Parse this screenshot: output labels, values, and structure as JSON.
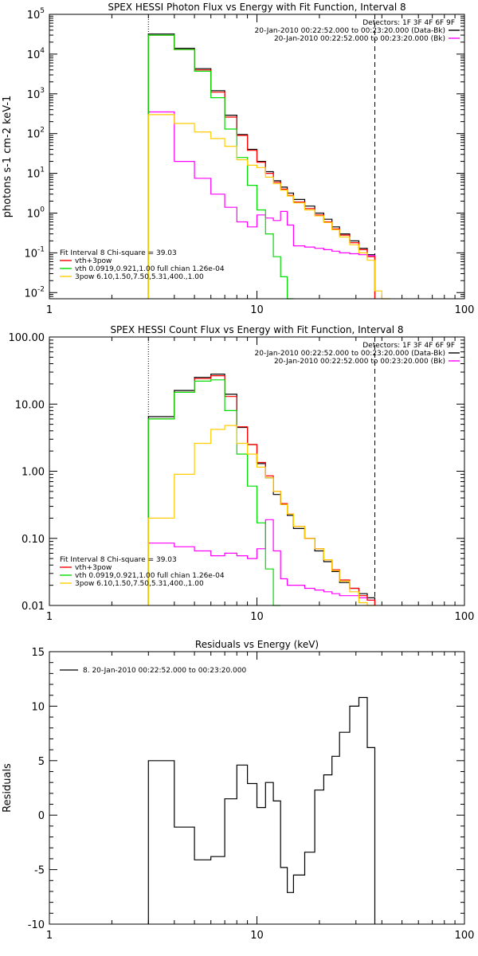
{
  "chart_data": [
    {
      "type": "line",
      "title": "SPEX HESSI Photon Flux vs Energy with Fit Function, Interval 8",
      "xlabel": "",
      "ylabel": "photons s-1 cm-2 keV-1",
      "xscale": "log",
      "yscale": "log",
      "xlim": [
        1,
        100
      ],
      "ylim": [
        0.007,
        100000
      ],
      "x_ticks": [
        "1",
        "10",
        "100"
      ],
      "y_ticks": [
        {
          "value": 100000,
          "base": "10",
          "exp": "5"
        },
        {
          "value": 10000,
          "base": "10",
          "exp": "4"
        },
        {
          "value": 1000,
          "base": "10",
          "exp": "3"
        },
        {
          "value": 100,
          "base": "10",
          "exp": "2"
        },
        {
          "value": 10,
          "base": "10",
          "exp": "1"
        },
        {
          "value": 1,
          "base": "10",
          "exp": "0"
        },
        {
          "value": 0.1,
          "base": "10",
          "exp": "-1"
        },
        {
          "value": 0.01,
          "base": "10",
          "exp": "-2"
        }
      ],
      "vlines": [
        {
          "x": 3.0,
          "style": "dotted"
        },
        {
          "x": 37.0,
          "style": "dashed"
        }
      ],
      "legend_top": {
        "header": "Detectors: 1F 3F 4F 6F 9F",
        "entries": [
          {
            "label": "20-Jan-2010 00:22:52.000 to 00:23:20.000 (Data-Bk)",
            "color": "#000000"
          },
          {
            "label": "20-Jan-2010 00:22:52.000 to 00:23:20.000 (Bk)",
            "color": "#ff00ff"
          }
        ]
      },
      "legend_bottom": {
        "header": "Fit Interval 8   Chi-square = 39.03",
        "entries": [
          {
            "label": "vth+3pow",
            "color": "#ff0000"
          },
          {
            "label": "vth 0.0919,0.921,1.00  full chian 1.26e-04",
            "color": "#00dd00"
          },
          {
            "label": "3pow 6.10,1.50,7.50,5.31,400.,1.00",
            "color": "#ffcc00"
          }
        ]
      },
      "edges": [
        3.0,
        4.0,
        5.0,
        6.0,
        7.0,
        8.0,
        9.0,
        10.0,
        11.0,
        12.0,
        13.0,
        14.0,
        15.0,
        17.0,
        19.0,
        21.0,
        23.0,
        25.0,
        28.0,
        31.0,
        34.0,
        37.0,
        40.0,
        44.0
      ],
      "series": [
        {
          "color": "#000000",
          "values": [
            32000,
            14000,
            4300,
            1200,
            290,
            95,
            40,
            20,
            11,
            6.5,
            4.5,
            3.2,
            2.2,
            1.5,
            1.0,
            0.7,
            0.45,
            0.3,
            0.2,
            0.13,
            0.09,
            null,
            null
          ]
        },
        {
          "color": "#ff00ff",
          "values": [
            350,
            20,
            7.5,
            3.0,
            1.4,
            0.6,
            0.45,
            0.9,
            0.75,
            0.65,
            1.1,
            0.5,
            0.15,
            0.14,
            0.13,
            0.12,
            0.11,
            0.1,
            0.095,
            0.09,
            0.085,
            null,
            null
          ]
        },
        {
          "color": "#ff0000",
          "values": [
            30000,
            13000,
            4000,
            1100,
            260,
            90,
            38,
            19,
            10,
            6.0,
            4.0,
            2.8,
            1.9,
            1.3,
            0.9,
            0.6,
            0.4,
            0.28,
            0.18,
            0.12,
            0.08,
            null,
            null
          ]
        },
        {
          "color": "#00dd00",
          "values": [
            30000,
            13000,
            3700,
            800,
            130,
            25,
            5,
            1.2,
            0.3,
            0.08,
            0.025,
            0.006,
            null,
            null,
            null,
            null,
            null,
            null,
            null,
            null,
            null,
            null,
            null
          ]
        },
        {
          "color": "#ffcc00",
          "values": [
            300,
            180,
            110,
            75,
            48,
            22,
            16,
            14,
            8,
            5.5,
            3.8,
            2.7,
            1.8,
            1.2,
            0.85,
            0.58,
            0.38,
            0.25,
            0.16,
            0.1,
            0.065,
            0.011,
            0.007
          ]
        }
      ]
    },
    {
      "type": "line",
      "title": "SPEX HESSI Count Flux vs Energy with Fit Function, Interval 8",
      "xlabel": "",
      "ylabel": "",
      "xscale": "log",
      "yscale": "log",
      "xlim": [
        1,
        100
      ],
      "ylim": [
        0.01,
        100
      ],
      "x_ticks": [
        "1",
        "10",
        "100"
      ],
      "y_ticks": [
        {
          "value": 100,
          "label": "100.00"
        },
        {
          "value": 10,
          "label": "10.00"
        },
        {
          "value": 1,
          "label": "1.00"
        },
        {
          "value": 0.1,
          "label": "0.10"
        },
        {
          "value": 0.01,
          "label": "0.01"
        }
      ],
      "vlines": [
        {
          "x": 3.0,
          "style": "dotted"
        },
        {
          "x": 37.0,
          "style": "dashed"
        }
      ],
      "legend_top": {
        "header": "Detectors: 1F 3F 4F 6F 9F",
        "entries": [
          {
            "label": "20-Jan-2010 00:22:52.000 to 00:23:20.000 (Data-Bk)",
            "color": "#000000"
          },
          {
            "label": "20-Jan-2010 00:22:52.000 to 00:23:20.000 (Bk)",
            "color": "#ff00ff"
          }
        ]
      },
      "legend_bottom": {
        "header": "Fit Interval 8   Chi-square = 39.03",
        "entries": [
          {
            "label": "vth+3pow",
            "color": "#ff0000"
          },
          {
            "label": "vth 0.0919,0.921,1.00  full chian 1.26e-04",
            "color": "#00dd00"
          },
          {
            "label": "3pow 6.10,1.50,7.50,5.31,400.,1.00",
            "color": "#ffcc00"
          }
        ]
      },
      "edges": [
        3.0,
        4.0,
        5.0,
        6.0,
        7.0,
        8.0,
        9.0,
        10.0,
        11.0,
        12.0,
        13.0,
        14.0,
        15.0,
        17.0,
        19.0,
        21.0,
        23.0,
        25.0,
        28.0,
        31.0,
        34.0,
        37.0,
        40.0
      ],
      "series": [
        {
          "color": "#000000",
          "values": [
            6.5,
            16.0,
            25.0,
            28.0,
            14.0,
            4.5,
            2.5,
            1.3,
            0.8,
            0.45,
            0.32,
            0.22,
            0.14,
            0.1,
            0.065,
            0.045,
            0.032,
            0.022,
            0.018,
            0.015,
            0.013,
            null
          ]
        },
        {
          "color": "#ff00ff",
          "values": [
            0.085,
            0.075,
            0.065,
            0.055,
            0.06,
            0.055,
            0.05,
            0.07,
            0.19,
            0.065,
            0.025,
            0.02,
            0.02,
            0.018,
            0.017,
            0.016,
            0.015,
            0.014,
            0.014,
            0.013,
            0.012,
            null
          ]
        },
        {
          "color": "#ff0000",
          "values": [
            6.0,
            15.0,
            24.0,
            26.5,
            13.0,
            4.6,
            2.5,
            1.35,
            0.85,
            0.5,
            0.33,
            0.23,
            0.15,
            0.1,
            0.07,
            0.048,
            0.034,
            0.024,
            0.018,
            0.014,
            0.012,
            null
          ]
        },
        {
          "color": "#00dd00",
          "values": [
            6.0,
            15.0,
            22.0,
            23.0,
            8.0,
            1.8,
            0.6,
            0.17,
            0.035,
            0.01,
            null,
            null,
            null,
            null,
            null,
            null,
            null,
            null,
            null,
            null,
            null,
            null
          ]
        },
        {
          "color": "#ffcc00",
          "values": [
            0.2,
            0.9,
            2.6,
            4.2,
            4.8,
            2.6,
            1.8,
            1.15,
            0.8,
            0.5,
            0.32,
            0.23,
            0.15,
            0.1,
            0.07,
            0.048,
            0.033,
            0.023,
            0.016,
            0.011,
            0.008,
            null
          ]
        }
      ]
    },
    {
      "type": "line",
      "title": "Residuals vs Energy (keV)",
      "xlabel": "",
      "ylabel": "Residuals",
      "xscale": "log",
      "yscale": "linear",
      "xlim": [
        1,
        100
      ],
      "ylim": [
        -10,
        15
      ],
      "x_ticks": [
        "1",
        "10",
        "100"
      ],
      "y_ticks": [
        {
          "value": 15,
          "label": "15"
        },
        {
          "value": 10,
          "label": "10"
        },
        {
          "value": 5,
          "label": "5"
        },
        {
          "value": 0,
          "label": "0"
        },
        {
          "value": -5,
          "label": "-5"
        },
        {
          "value": -10,
          "label": "-10"
        }
      ],
      "legend_top": {
        "header": "",
        "entries": [
          {
            "label": "8. 20-Jan-2010 00:22:52.000 to 00:23:20.000",
            "color": "#000000"
          }
        ]
      },
      "edges": [
        3.0,
        4.0,
        5.0,
        6.0,
        7.0,
        8.0,
        9.0,
        10.0,
        11.0,
        12.0,
        13.0,
        14.0,
        15.0,
        17.0,
        19.0,
        21.0,
        23.0,
        25.0,
        28.0,
        31.0,
        34.0,
        37.0
      ],
      "series": [
        {
          "color": "#000000",
          "values": [
            5.0,
            -1.1,
            -4.1,
            -3.8,
            1.5,
            4.6,
            2.9,
            0.7,
            3.0,
            1.3,
            -4.8,
            -7.1,
            -5.5,
            -3.4,
            2.3,
            3.7,
            5.4,
            7.6,
            10.0,
            10.8,
            6.2
          ]
        }
      ]
    }
  ]
}
